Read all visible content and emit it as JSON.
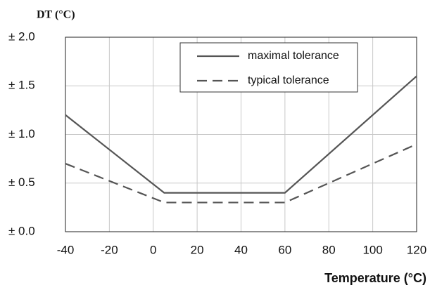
{
  "chart_data": {
    "type": "line",
    "y_label": "DT (°C)",
    "x_label": "Temperature (°C)",
    "xlim": [
      -40,
      120
    ],
    "xticks": [
      -40,
      -20,
      0,
      20,
      40,
      60,
      80,
      100,
      120
    ],
    "ylim": [
      0,
      2
    ],
    "yticks": [
      {
        "value": 0,
        "label": "± 0.0"
      },
      {
        "value": 0.5,
        "label": "± 0.5"
      },
      {
        "value": 1,
        "label": "± 1.0"
      },
      {
        "value": 1.5,
        "label": "± 1.5"
      },
      {
        "value": 2,
        "label": "± 2.0"
      }
    ],
    "grid": true,
    "legend": "upper center",
    "series": [
      {
        "name": "maximal tolerance",
        "color": "#555555",
        "dash": "solid",
        "x": [
          -40,
          5,
          60,
          120
        ],
        "values": [
          1.2,
          0.4,
          0.4,
          1.6
        ]
      },
      {
        "name": "typical tolerance",
        "color": "#555555",
        "dash": "dashed",
        "x": [
          -40,
          5,
          60,
          120
        ],
        "values": [
          0.7,
          0.3,
          0.3,
          0.9
        ]
      }
    ]
  }
}
